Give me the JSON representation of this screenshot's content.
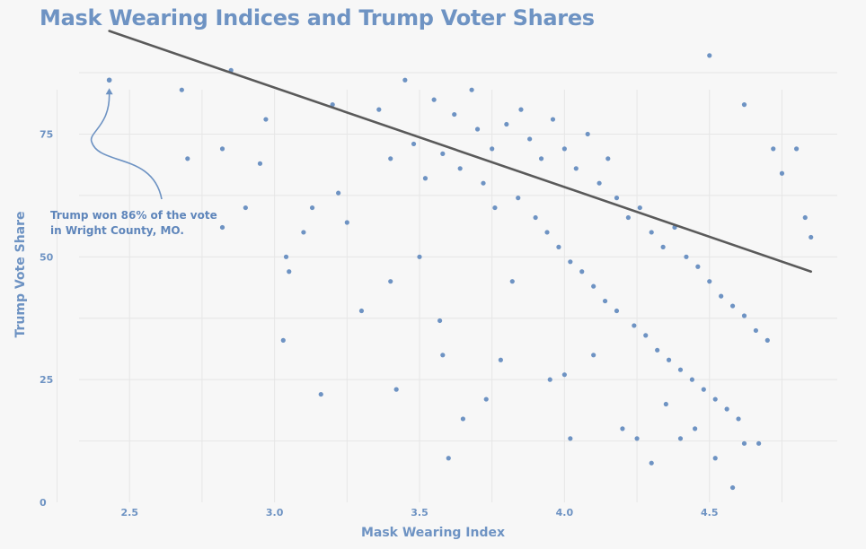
{
  "chart_data": {
    "type": "scatter",
    "title": "Mask Wearing Indices and Trump Voter Shares",
    "xlabel": "Mask Wearing Index",
    "ylabel": "Trump Vote Share",
    "x_ticks": [
      "2.5",
      "3.0",
      "3.5",
      "4.0",
      "4.5"
    ],
    "y_ticks": [
      "0",
      "25",
      "50",
      "75"
    ],
    "xlim": [
      2.27,
      4.95
    ],
    "ylim": [
      0,
      95
    ],
    "grid": true,
    "point_color": "#6e93c3",
    "trend_color": "#5a5a5a",
    "trendline": {
      "x": [
        2.43,
        4.85
      ],
      "y": [
        96,
        47
      ]
    },
    "highlight_point": {
      "x": 2.43,
      "y": 86
    },
    "annotation": {
      "line1": "Trump won 86% of the vote",
      "line2": "in Wright County, MO."
    },
    "points": [
      [
        2.43,
        86
      ],
      [
        2.68,
        84
      ],
      [
        2.82,
        72
      ],
      [
        2.82,
        56
      ],
      [
        2.85,
        88
      ],
      [
        2.95,
        69
      ],
      [
        2.97,
        78
      ],
      [
        3.03,
        33
      ],
      [
        3.04,
        50
      ],
      [
        3.05,
        47
      ],
      [
        3.1,
        55
      ],
      [
        3.16,
        22
      ],
      [
        3.13,
        60
      ],
      [
        3.2,
        81
      ],
      [
        3.22,
        63
      ],
      [
        3.25,
        57
      ],
      [
        3.3,
        39
      ],
      [
        3.4,
        45
      ],
      [
        3.42,
        23
      ],
      [
        3.5,
        50
      ],
      [
        3.57,
        37
      ],
      [
        3.58,
        30
      ],
      [
        3.6,
        9
      ],
      [
        3.65,
        17
      ],
      [
        3.73,
        21
      ],
      [
        3.78,
        29
      ],
      [
        3.82,
        45
      ],
      [
        3.95,
        25
      ],
      [
        4.0,
        26
      ],
      [
        4.02,
        13
      ],
      [
        4.1,
        30
      ],
      [
        4.2,
        15
      ],
      [
        4.25,
        13
      ],
      [
        4.3,
        8
      ],
      [
        4.35,
        20
      ],
      [
        4.4,
        13
      ],
      [
        4.45,
        15
      ],
      [
        4.52,
        9
      ],
      [
        4.58,
        3
      ],
      [
        4.62,
        12
      ],
      [
        4.67,
        12
      ],
      [
        4.62,
        81
      ],
      [
        4.5,
        91
      ],
      [
        4.72,
        72
      ],
      [
        4.75,
        67
      ],
      [
        4.8,
        72
      ],
      [
        4.83,
        58
      ],
      [
        4.85,
        54
      ],
      [
        2.7,
        70
      ],
      [
        2.9,
        60
      ],
      [
        3.36,
        80
      ],
      [
        3.45,
        86
      ],
      [
        3.55,
        82
      ],
      [
        3.62,
        79
      ],
      [
        3.68,
        84
      ],
      [
        3.7,
        76
      ],
      [
        3.75,
        72
      ],
      [
        3.8,
        77
      ],
      [
        3.85,
        80
      ],
      [
        3.88,
        74
      ],
      [
        3.92,
        70
      ],
      [
        3.96,
        78
      ],
      [
        4.0,
        72
      ],
      [
        4.04,
        68
      ],
      [
        4.08,
        75
      ],
      [
        4.12,
        65
      ],
      [
        4.15,
        70
      ],
      [
        4.18,
        62
      ],
      [
        4.22,
        58
      ],
      [
        4.26,
        60
      ],
      [
        4.3,
        55
      ],
      [
        4.34,
        52
      ],
      [
        4.38,
        56
      ],
      [
        4.42,
        50
      ],
      [
        4.46,
        48
      ],
      [
        4.5,
        45
      ],
      [
        4.54,
        42
      ],
      [
        4.58,
        40
      ],
      [
        4.62,
        38
      ],
      [
        4.66,
        35
      ],
      [
        4.7,
        33
      ],
      [
        3.4,
        70
      ],
      [
        3.48,
        73
      ],
      [
        3.52,
        66
      ],
      [
        3.58,
        71
      ],
      [
        3.64,
        68
      ],
      [
        3.72,
        65
      ],
      [
        3.76,
        60
      ],
      [
        3.84,
        62
      ],
      [
        3.9,
        58
      ],
      [
        3.94,
        55
      ],
      [
        3.98,
        52
      ],
      [
        4.02,
        49
      ],
      [
        4.06,
        47
      ],
      [
        4.1,
        44
      ],
      [
        4.14,
        41
      ],
      [
        4.18,
        39
      ],
      [
        4.24,
        36
      ],
      [
        4.28,
        34
      ],
      [
        4.32,
        31
      ],
      [
        4.36,
        29
      ],
      [
        4.4,
        27
      ],
      [
        4.44,
        25
      ],
      [
        4.48,
        23
      ],
      [
        4.52,
        21
      ],
      [
        4.56,
        19
      ],
      [
        4.6,
        17
      ]
    ]
  }
}
